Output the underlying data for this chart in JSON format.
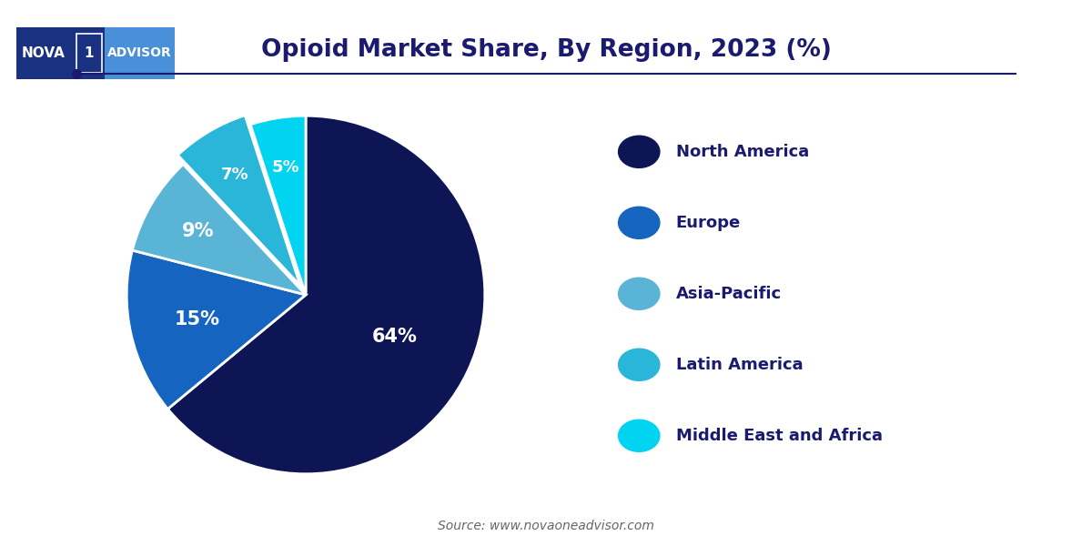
{
  "title": "Opioid Market Share, By Region, 2023 (%)",
  "labels": [
    "North America",
    "Europe",
    "Asia-Pacific",
    "Latin America",
    "Middle East and Africa"
  ],
  "values": [
    64,
    15,
    9,
    7,
    5
  ],
  "colors": [
    "#0d1554",
    "#1565c0",
    "#5ab4d6",
    "#29b6d8",
    "#00d4f0"
  ],
  "explode": [
    0,
    0,
    0,
    0.06,
    0
  ],
  "pct_labels": [
    "64%",
    "15%",
    "9%",
    "7%",
    "5%"
  ],
  "source_text": "Source: www.novaoneadvisor.com",
  "background_color": "#ffffff",
  "title_color": "#1a1a6e",
  "legend_text_color": "#1a1a6e",
  "logo_dark_color": "#1a3080",
  "logo_light_color": "#4a90d9",
  "line_color": "#1a1a6e"
}
